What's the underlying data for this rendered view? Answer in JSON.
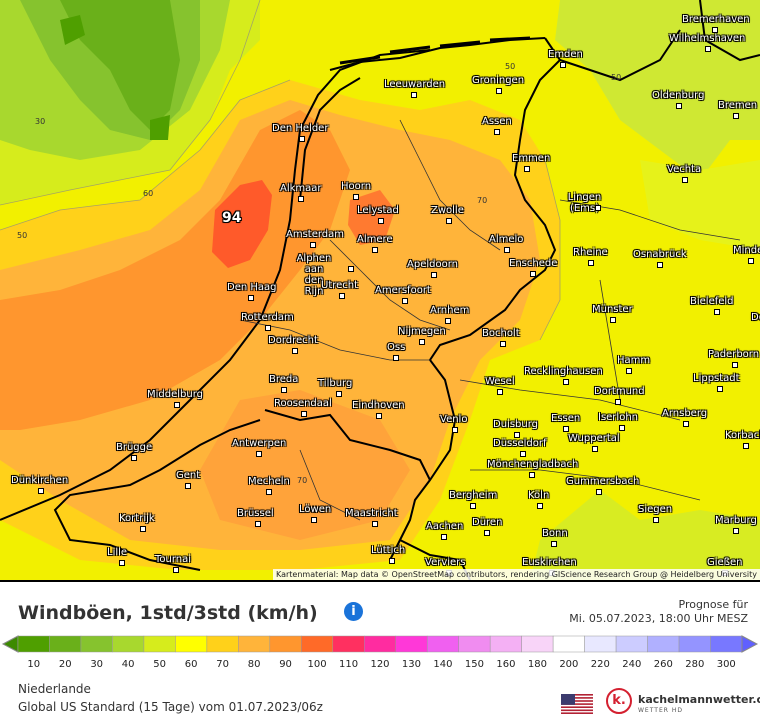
{
  "map": {
    "peak_label": "94",
    "attribution": "Kartenmaterial: Map data © OpenStreetMap contributors, rendering GIScience Research Group @ Heidelberg University",
    "isoline_labels": [
      "50",
      "30",
      "60",
      "50",
      "50",
      "70",
      "70"
    ],
    "cities": [
      "Bremerhaven",
      "Wilhelmshaven",
      "Emden",
      "Leeuwarden",
      "Groningen",
      "Oldenburg",
      "Bremen",
      "Den Helder",
      "Assen",
      "Emmen",
      "Vechta",
      "Alkmaar",
      "Hoorn",
      "Lelystad",
      "Zwolle",
      "Lingen (Ems)",
      "Amsterdam",
      "Almere",
      "Almelo",
      "Rheine",
      "Osnabrück",
      "Minden",
      "Alphen aan den Rijn",
      "Apeldoorn",
      "Enschede",
      "Den Haag",
      "Utrecht",
      "Amersfoort",
      "Bielefeld",
      "Rotterdam",
      "Arnhem",
      "Münster",
      "Detmold",
      "Nijmegen",
      "Bocholt",
      "Dordrecht",
      "Oss",
      "Paderborn",
      "Recklinghausen",
      "Hamm",
      "Breda",
      "Tilburg",
      "Wesel",
      "Dortmund",
      "Lippstadt",
      "Middelburg",
      "Roosendaal",
      "Eindhoven",
      "Venlo",
      "Essen",
      "Iserlohn",
      "Arnsberg",
      "Duisburg",
      "Brügge",
      "Antwerpen",
      "Düsseldorf",
      "Wuppertal",
      "Korbach",
      "Mönchengladbach",
      "Dünkirchen",
      "Gent",
      "Mecheln",
      "Gummersbach",
      "Bergheim",
      "Köln",
      "Löwen",
      "Siegen",
      "Brüssel",
      "Maastricht",
      "Kortrijk",
      "Aachen",
      "Düren",
      "Marburg",
      "Bonn",
      "Lille",
      "Tournai",
      "Lüttich",
      "Euskirchen",
      "Verviers",
      "Gießen"
    ]
  },
  "header": {
    "title": "Windböen, 1std/3std (km/h)",
    "info_icon": "info-icon",
    "forecast_label": "Prognose für",
    "forecast_time": "Mi. 05.07.2023, 18:00 Uhr MESZ"
  },
  "legend": {
    "labels": [
      "10",
      "20",
      "30",
      "40",
      "50",
      "60",
      "70",
      "80",
      "90",
      "100",
      "110",
      "120",
      "130",
      "140",
      "150",
      "160",
      "180",
      "200",
      "220",
      "240",
      "260",
      "280",
      "300"
    ],
    "colors": [
      "#4f9f00",
      "#6ab01a",
      "#86c32e",
      "#a8d82e",
      "#d6ec1c",
      "#ffff00",
      "#ffd11a",
      "#ffb43a",
      "#ff962e",
      "#ff6a28",
      "#ff3060",
      "#ff2ca0",
      "#ff38d8",
      "#f060f0",
      "#f08cf0",
      "#f4b0f4",
      "#f8d4f8",
      "#ffffff",
      "#e8e8ff",
      "#ccccff",
      "#b0b0ff",
      "#9494ff",
      "#7878ff"
    ],
    "min_color": "#3c8a00",
    "max_color": "#6060ff"
  },
  "footer": {
    "region": "Niederlande",
    "model": "Global US Standard (15 Tage) vom 01.07.2023/06z",
    "brand": "kachelmannwetter.com",
    "brand_sub": "WETTER HD",
    "logo_letter": "k."
  }
}
